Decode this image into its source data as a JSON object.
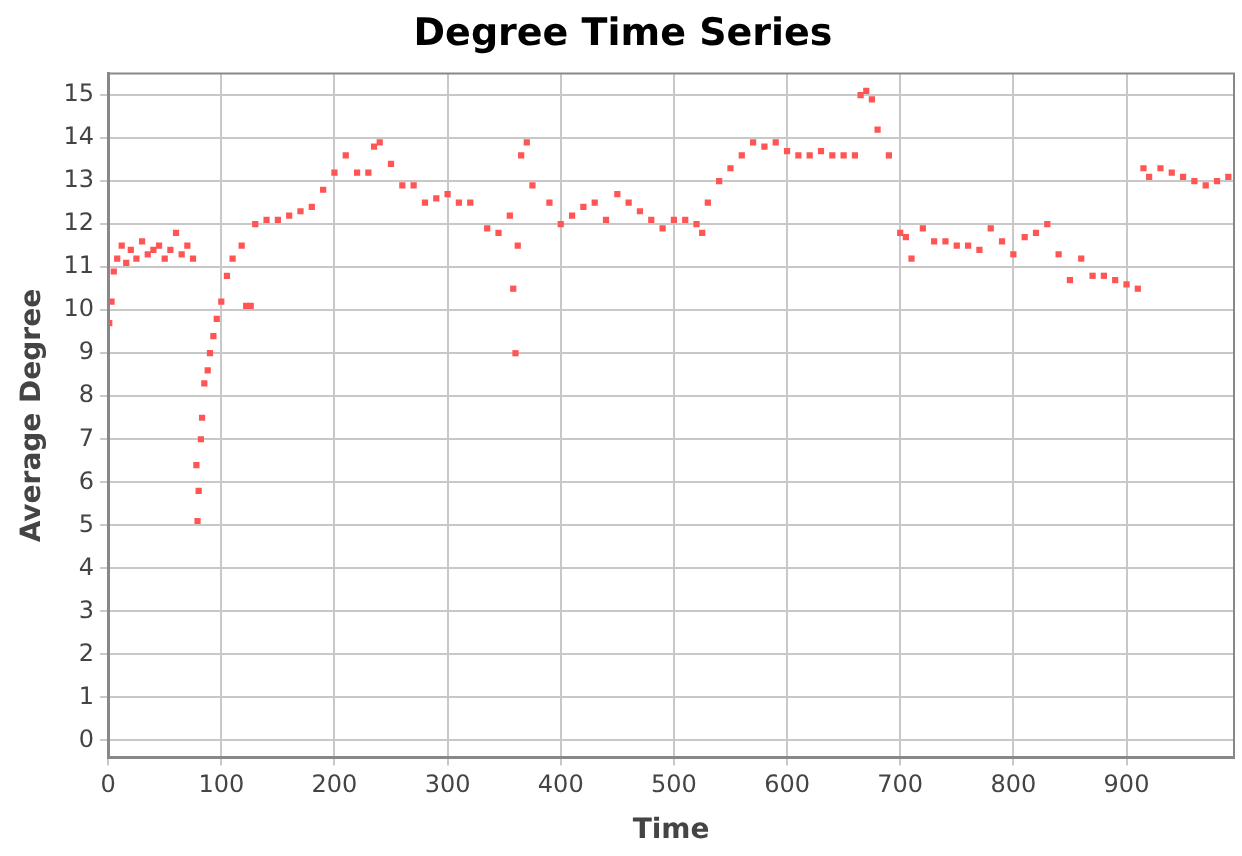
{
  "chart_data": {
    "type": "scatter",
    "title": "Degree Time Series",
    "xlabel": "Time",
    "ylabel": "Average Degree",
    "xlim": [
      0,
      995
    ],
    "ylim": [
      -0.4,
      15.5
    ],
    "xticks": [
      0,
      100,
      200,
      300,
      400,
      500,
      600,
      700,
      800,
      900
    ],
    "yticks": [
      0,
      1,
      2,
      3,
      4,
      5,
      6,
      7,
      8,
      9,
      10,
      11,
      12,
      13,
      14,
      15
    ],
    "grid": true,
    "legend": false,
    "marker": "square",
    "series": [
      {
        "color": "#ff5555",
        "x": [
          1,
          3,
          5,
          8,
          12,
          16,
          20,
          25,
          30,
          35,
          40,
          45,
          50,
          55,
          60,
          65,
          70,
          75,
          78,
          79,
          80,
          82,
          83,
          85,
          88,
          90,
          93,
          96,
          100,
          105,
          110,
          118,
          122,
          126,
          130,
          140,
          150,
          160,
          170,
          180,
          190,
          200,
          210,
          220,
          230,
          235,
          240,
          250,
          260,
          270,
          280,
          290,
          300,
          310,
          320,
          335,
          345,
          355,
          358,
          360,
          362,
          365,
          370,
          375,
          390,
          400,
          410,
          420,
          430,
          440,
          450,
          460,
          470,
          480,
          490,
          500,
          510,
          520,
          525,
          530,
          540,
          550,
          560,
          570,
          580,
          590,
          600,
          610,
          620,
          630,
          640,
          650,
          660,
          665,
          670,
          675,
          680,
          690,
          700,
          705,
          710,
          720,
          730,
          740,
          750,
          760,
          770,
          780,
          790,
          800,
          810,
          820,
          830,
          840,
          850,
          860,
          870,
          880,
          890,
          900,
          910,
          915,
          920,
          930,
          940,
          950,
          960,
          970,
          980,
          990
        ],
        "values": [
          9.7,
          10.2,
          10.9,
          11.2,
          11.5,
          11.1,
          11.4,
          11.2,
          11.6,
          11.3,
          11.4,
          11.5,
          11.2,
          11.4,
          11.8,
          11.3,
          11.5,
          11.2,
          6.4,
          5.1,
          5.8,
          7.0,
          7.5,
          8.3,
          8.6,
          9.0,
          9.4,
          9.8,
          10.2,
          10.8,
          11.2,
          11.5,
          10.1,
          10.1,
          12.0,
          12.1,
          12.1,
          12.2,
          12.3,
          12.4,
          12.8,
          13.2,
          13.6,
          13.2,
          13.2,
          13.8,
          13.9,
          13.4,
          12.9,
          12.9,
          12.5,
          12.6,
          12.7,
          12.5,
          12.5,
          11.9,
          11.8,
          12.2,
          10.5,
          9.0,
          11.5,
          13.6,
          13.9,
          12.9,
          12.5,
          12.0,
          12.2,
          12.4,
          12.5,
          12.1,
          12.7,
          12.5,
          12.3,
          12.1,
          11.9,
          12.1,
          12.1,
          12.0,
          11.8,
          12.5,
          13.0,
          13.3,
          13.6,
          13.9,
          13.8,
          13.9,
          13.7,
          13.6,
          13.6,
          13.7,
          13.6,
          13.6,
          13.6,
          15.0,
          15.1,
          14.9,
          14.2,
          13.6,
          11.8,
          11.7,
          11.2,
          11.9,
          11.6,
          11.6,
          11.5,
          11.5,
          11.4,
          11.9,
          11.6,
          11.3,
          11.7,
          11.8,
          12.0,
          11.3,
          10.7,
          11.2,
          10.8,
          10.8,
          10.7,
          10.6,
          10.5,
          13.3,
          13.1,
          13.3,
          13.2,
          13.1,
          13.0,
          12.9,
          13.0,
          13.1
        ]
      }
    ]
  }
}
